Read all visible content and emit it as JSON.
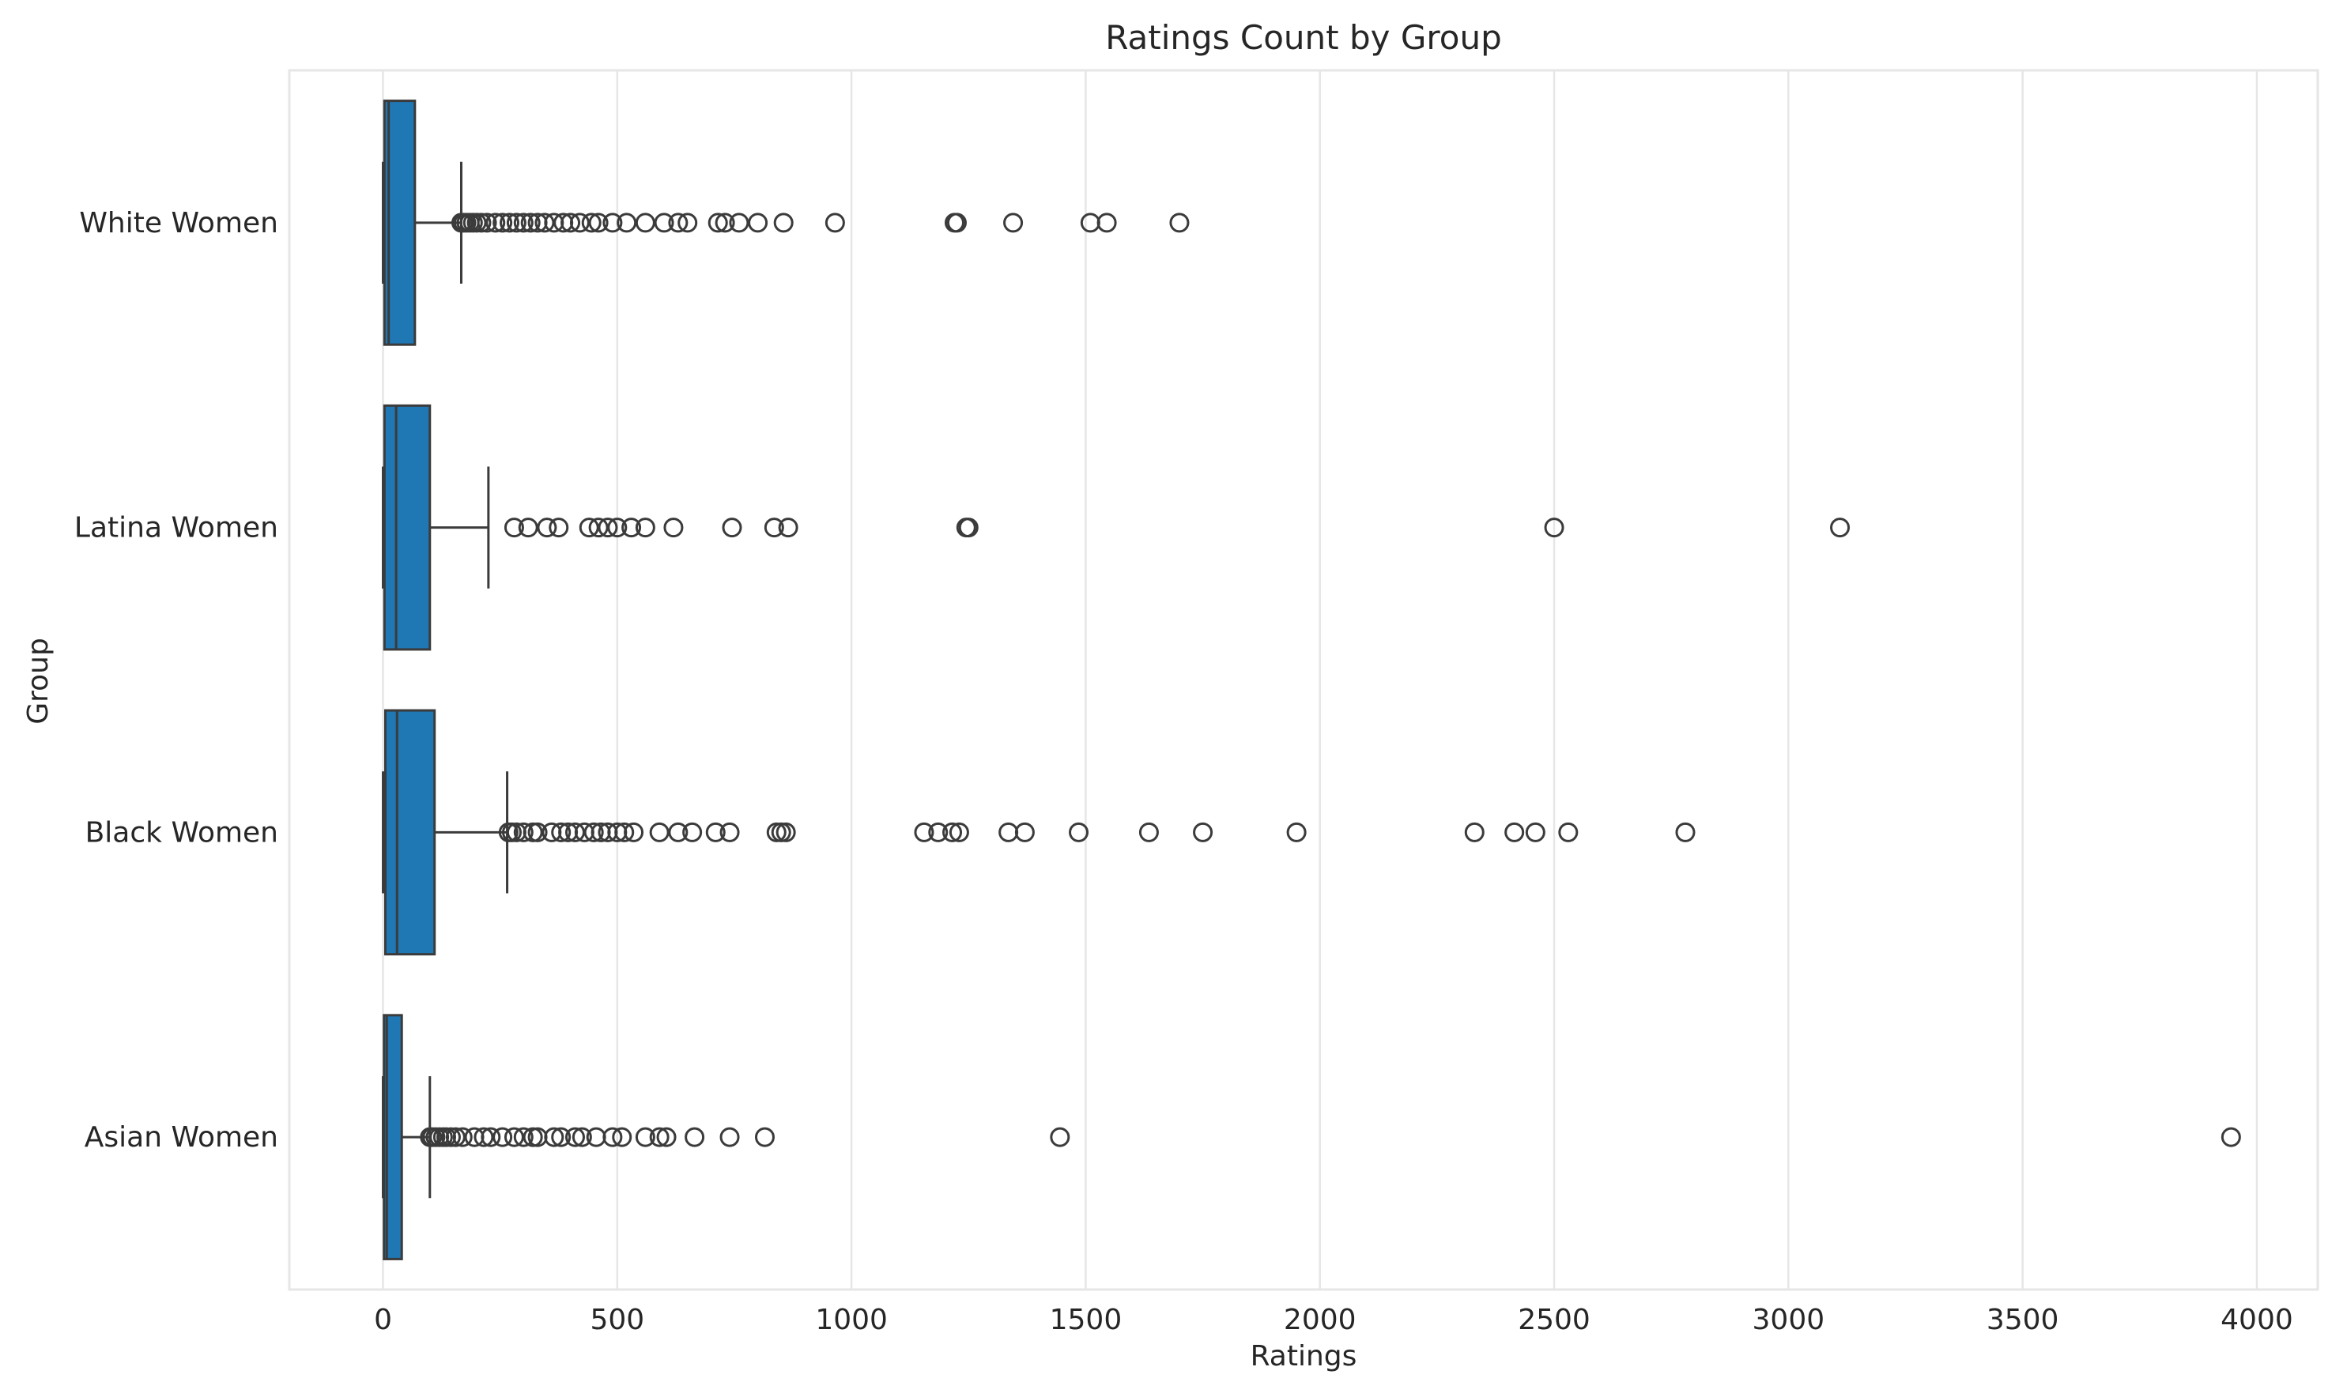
{
  "chart_data": {
    "type": "box",
    "orientation": "horizontal",
    "title": "Ratings Count by Group",
    "xlabel": "Ratings",
    "ylabel": "Group",
    "xlim": [
      -200,
      4130
    ],
    "xticks": [
      0,
      500,
      1000,
      1500,
      2000,
      2500,
      3000,
      3500,
      4000
    ],
    "grid": true,
    "box_color": "#1f77b4",
    "edge_color": "#3b3b3b",
    "categories": [
      "White Women",
      "Latina Women",
      "Black Women",
      "Asian Women"
    ],
    "series": [
      {
        "category": "White Women",
        "whisker_low": 0,
        "q1": 3,
        "median": 12,
        "q3": 68,
        "whisker_high": 167,
        "outliers": [
          167,
          172,
          178,
          185,
          192,
          200,
          210,
          222,
          240,
          255,
          270,
          285,
          300,
          315,
          330,
          345,
          365,
          385,
          400,
          420,
          445,
          460,
          490,
          520,
          560,
          600,
          630,
          650,
          715,
          730,
          760,
          800,
          855,
          965,
          1220,
          1225,
          1345,
          1510,
          1545,
          1700
        ]
      },
      {
        "category": "Latina Women",
        "whisker_low": 0,
        "q1": 3,
        "median": 28,
        "q3": 100,
        "whisker_high": 225,
        "outliers": [
          280,
          310,
          350,
          375,
          440,
          460,
          480,
          500,
          530,
          560,
          620,
          745,
          835,
          865,
          1245,
          1250,
          2500,
          3110
        ]
      },
      {
        "category": "Black Women",
        "whisker_low": 0,
        "q1": 5,
        "median": 30,
        "q3": 110,
        "whisker_high": 265,
        "outliers": [
          268,
          275,
          285,
          300,
          320,
          330,
          360,
          380,
          395,
          410,
          430,
          450,
          465,
          480,
          500,
          515,
          535,
          590,
          630,
          660,
          710,
          740,
          840,
          850,
          860,
          1155,
          1185,
          1215,
          1230,
          1335,
          1370,
          1485,
          1635,
          1750,
          1950,
          2330,
          2415,
          2460,
          2530,
          2780
        ]
      },
      {
        "category": "Asian Women",
        "whisker_low": 0,
        "q1": 2,
        "median": 8,
        "q3": 40,
        "whisker_high": 100,
        "outliers": [
          100,
          105,
          112,
          120,
          128,
          135,
          145,
          155,
          170,
          195,
          215,
          230,
          255,
          280,
          300,
          320,
          330,
          365,
          380,
          410,
          425,
          455,
          490,
          510,
          560,
          590,
          605,
          665,
          740,
          815,
          1445,
          3945
        ]
      }
    ]
  }
}
